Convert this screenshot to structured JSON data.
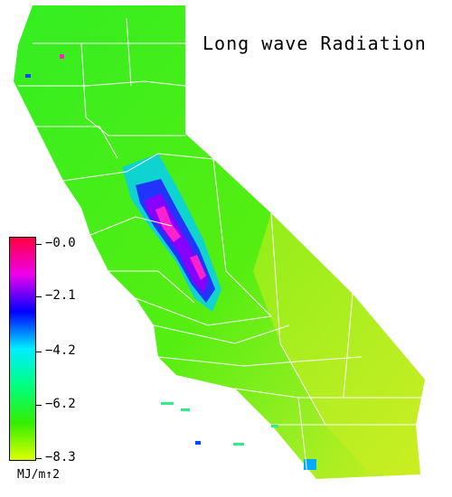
{
  "title": "Long wave Radiation",
  "legend": {
    "ticks": [
      "−0.0",
      "−2.1",
      "−4.2",
      "−6.2",
      "−8.3"
    ],
    "unit": "MJ/m↑2",
    "colors": [
      "#ff0040",
      "#ee00ee",
      "#0000ff",
      "#00eeff",
      "#00ff80",
      "#33ee00",
      "#ddff00"
    ]
  },
  "map": {
    "base_color": "#44ee22",
    "east_color": "#bbee22",
    "sierra_colors": [
      "#0088ff",
      "#2222ff",
      "#7700ff",
      "#ff22cc"
    ]
  }
}
